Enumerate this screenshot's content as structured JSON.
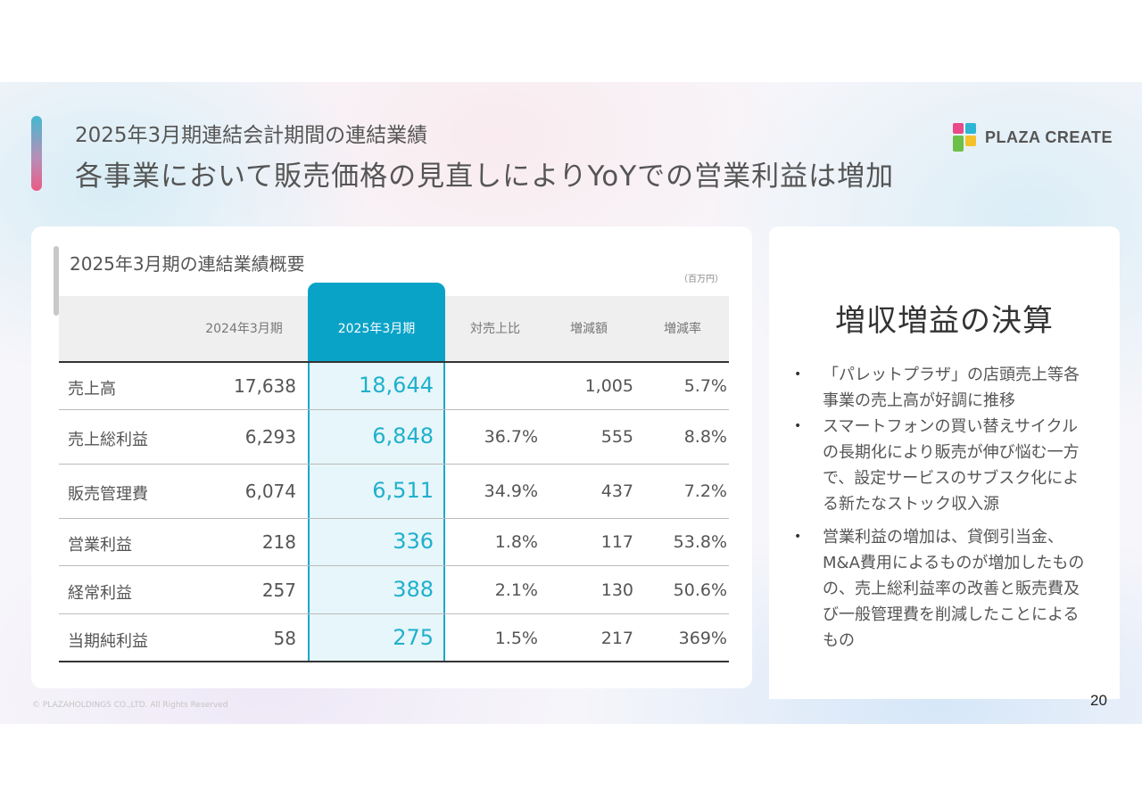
{
  "header": {
    "subtitle": "2025年3月期連結会計期間の連結業績",
    "title": "各事業において販売価格の見直しによりYoYでの営業利益は増加"
  },
  "logo": {
    "text": "PLAZA CREATE",
    "colors": [
      "#e84a8a",
      "#2fb5d4",
      "#f4c12a",
      "#6cc04a"
    ]
  },
  "summary": {
    "section_title": "2025年3月期の連結業績概要",
    "unit": "（百万円）",
    "columns": [
      "2024年3月期",
      "2025年3月期",
      "対売上比",
      "増減額",
      "増減率"
    ],
    "rows": [
      {
        "label": "売上高",
        "prev": "17,638",
        "curr": "18,644",
        "ratio": "",
        "diff": "1,005",
        "rate": "5.7%"
      },
      {
        "label": "売上総利益",
        "prev": "6,293",
        "curr": "6,848",
        "ratio": "36.7%",
        "diff": "555",
        "rate": "8.8%"
      },
      {
        "label": "販売管理費",
        "prev": "6,074",
        "curr": "6,511",
        "ratio": "34.9%",
        "diff": "437",
        "rate": "7.2%"
      },
      {
        "label": "営業利益",
        "prev": "218",
        "curr": "336",
        "ratio": "1.8%",
        "diff": "117",
        "rate": "53.8%"
      },
      {
        "label": "経常利益",
        "prev": "257",
        "curr": "388",
        "ratio": "2.1%",
        "diff": "130",
        "rate": "50.6%"
      },
      {
        "label": "当期純利益",
        "prev": "58",
        "curr": "275",
        "ratio": "1.5%",
        "diff": "217",
        "rate": "369%"
      }
    ],
    "highlight_color": "#0aa3c8"
  },
  "highlights": {
    "title": "増収増益の決算",
    "bullets": [
      "「パレットプラザ」の店頭売上等各事業の売上高が好調に推移",
      "スマートフォンの買い替えサイクルの長期化により販売が伸び悩む一方で、設定サービスのサブスク化による新たなストック収入源",
      "営業利益の増加は、貸倒引当金、M&A費用によるものが増加したものの、売上総利益率の改善と販売費及び一般管理費を削減したことによるもの"
    ]
  },
  "footer": {
    "page": "20",
    "copyright": "© PLAZAHOLDINGS CO.,LTD. All Rights Reserved"
  }
}
